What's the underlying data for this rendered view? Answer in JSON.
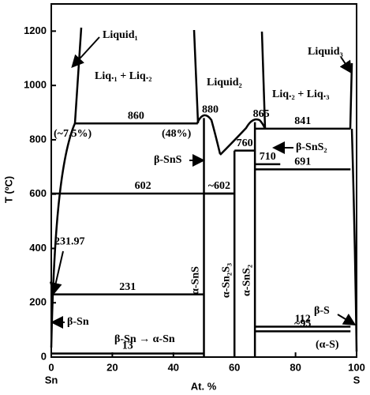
{
  "chart_data": {
    "type": "phase",
    "xlabel": "At. %",
    "ylabel": "T (ºC)",
    "xlim": [
      0,
      100
    ],
    "ylim": [
      0,
      1300
    ],
    "xticks": [
      0,
      20,
      40,
      60,
      80,
      100
    ],
    "yticks": [
      0,
      200,
      400,
      600,
      800,
      1000,
      1200
    ],
    "end_labels": [
      "Sn",
      "S"
    ],
    "isotherms": [
      {
        "value": 860,
        "x": [
          7.5,
          48
        ]
      },
      {
        "value": 841,
        "x": [
          66.7,
          98
        ]
      },
      {
        "value": 760,
        "x": [
          60,
          66.7
        ]
      },
      {
        "value": 710,
        "x": [
          66.7,
          75
        ]
      },
      {
        "value": 691,
        "x": [
          66.7,
          98
        ]
      },
      {
        "value": 602,
        "x": [
          0,
          60
        ]
      },
      {
        "value": 602,
        "label": "~602",
        "x": [
          50,
          60
        ]
      },
      {
        "value": 231,
        "x": [
          0,
          50
        ]
      },
      {
        "value": 13,
        "x": [
          0,
          50
        ]
      },
      {
        "value": 112,
        "x": [
          66.7,
          98
        ]
      },
      {
        "value": 95,
        "label": "~95",
        "x": [
          66.7,
          98
        ]
      }
    ],
    "compounds": {
      "x": [
        50,
        60,
        66.7
      ],
      "tops": [
        880,
        760,
        865
      ],
      "labels": [
        "α-SnS",
        "α-Sn₂S₃",
        "α-SnS₂"
      ]
    },
    "maxima": [
      {
        "value": 880,
        "x": 50
      },
      {
        "value": 865,
        "x": 66.7
      }
    ],
    "sn_melting": {
      "value": 231.97
    },
    "regions": [
      "Liquid₁",
      "Liq.₁ + Liq.₂",
      "Liquid₂",
      "Liquid₃",
      "Liq.₂ + Liq.₃",
      "(~7.5%)",
      "(48%)",
      "β-SnS",
      "β-SnS₂",
      "β-Sn",
      "β-Sn → α-Sn",
      "β-S",
      "(α-S)"
    ]
  }
}
